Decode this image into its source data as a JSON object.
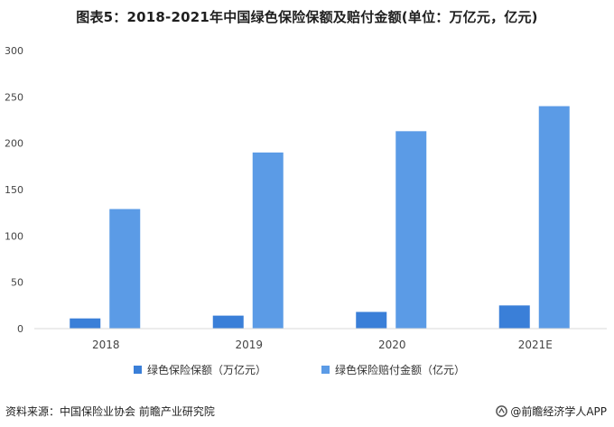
{
  "chart_data": {
    "type": "bar",
    "title": "图表5：2018-2021年中国绿色保险保额及赔付金额(单位：万亿元，亿元)",
    "categories": [
      "2018",
      "2019",
      "2020",
      "2021E"
    ],
    "series": [
      {
        "name": "绿色保险保额（万亿元）",
        "values": [
          11,
          14,
          18,
          25
        ],
        "color": "#3a7fd8"
      },
      {
        "name": "绿色保险赔付金额（亿元）",
        "values": [
          129,
          190,
          213,
          240
        ],
        "color": "#5b9be6"
      }
    ],
    "yticks": [
      "0",
      "50",
      "100",
      "150",
      "200",
      "250",
      "300"
    ],
    "ylim": [
      0,
      300
    ],
    "grid": false,
    "legend": "bottom",
    "axis_color": "#d9d9d9"
  },
  "footer": {
    "source": "资料来源：中国保险业协会 前瞻产业研究院",
    "brand": "@前瞻经济学人APP"
  }
}
